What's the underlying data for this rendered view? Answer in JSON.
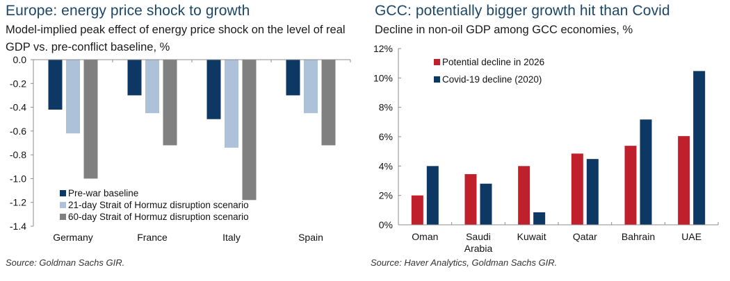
{
  "chart_data": [
    {
      "type": "bar",
      "title": "Europe: energy price shock to growth",
      "subtitle": "Model-implied peak effect of energy price shock on the level of real GDP vs. pre-conflict baseline, %",
      "xlabel": "",
      "ylabel": "",
      "categories": [
        "Germany",
        "France",
        "Italy",
        "Spain"
      ],
      "series": [
        {
          "name": "Pre-war baseline",
          "color": "#0d3864",
          "values": [
            -0.42,
            -0.3,
            -0.5,
            -0.3
          ]
        },
        {
          "name": "21-day Strait of Hormuz disruption scenario",
          "color": "#adc1d8",
          "values": [
            -0.62,
            -0.45,
            -0.74,
            -0.45
          ]
        },
        {
          "name": "60-day Strait of Hormuz disruption scenario",
          "color": "#808080",
          "values": [
            -1.0,
            -0.72,
            -1.18,
            -0.72
          ]
        }
      ],
      "ylim": [
        -1.4,
        0.0
      ],
      "yticks": [
        "0.0",
        "-0.2",
        "-0.4",
        "-0.6",
        "-0.8",
        "-1.0",
        "-1.2",
        "-1.4"
      ],
      "ytick_values": [
        0.0,
        -0.2,
        -0.4,
        -0.6,
        -0.8,
        -1.0,
        -1.2,
        -1.4
      ],
      "grid": false,
      "legend_position": "bottom-left",
      "source": "Source: Goldman Sachs GIR."
    },
    {
      "type": "bar",
      "title": "GCC: potentially bigger growth hit than Covid",
      "subtitle": "Decline in non-oil GDP among GCC economies, %",
      "xlabel": "",
      "ylabel": "",
      "categories": [
        "Oman",
        "Saudi Arabia",
        "Kuwait",
        "Qatar",
        "Bahrain",
        "UAE"
      ],
      "category_lines": [
        [
          "Oman"
        ],
        [
          "Saudi",
          "Arabia"
        ],
        [
          "Kuwait"
        ],
        [
          "Qatar"
        ],
        [
          "Bahrain"
        ],
        [
          "UAE"
        ]
      ],
      "series": [
        {
          "name": "Potential decline in 2026",
          "color": "#c0202c",
          "values": [
            2.0,
            3.45,
            4.0,
            4.85,
            5.38,
            6.04
          ]
        },
        {
          "name": "Covid-19 decline (2020)",
          "color": "#0d3864",
          "values": [
            4.0,
            2.8,
            0.85,
            4.48,
            7.17,
            10.47
          ]
        }
      ],
      "ylim": [
        0,
        12
      ],
      "yticks": [
        "0%",
        "2%",
        "4%",
        "6%",
        "8%",
        "10%",
        "12%"
      ],
      "ytick_values": [
        0,
        2,
        4,
        6,
        8,
        10,
        12
      ],
      "grid": false,
      "legend_position": "top-left",
      "source": "Source: Haver Analytics, Goldman Sachs GIR."
    }
  ]
}
